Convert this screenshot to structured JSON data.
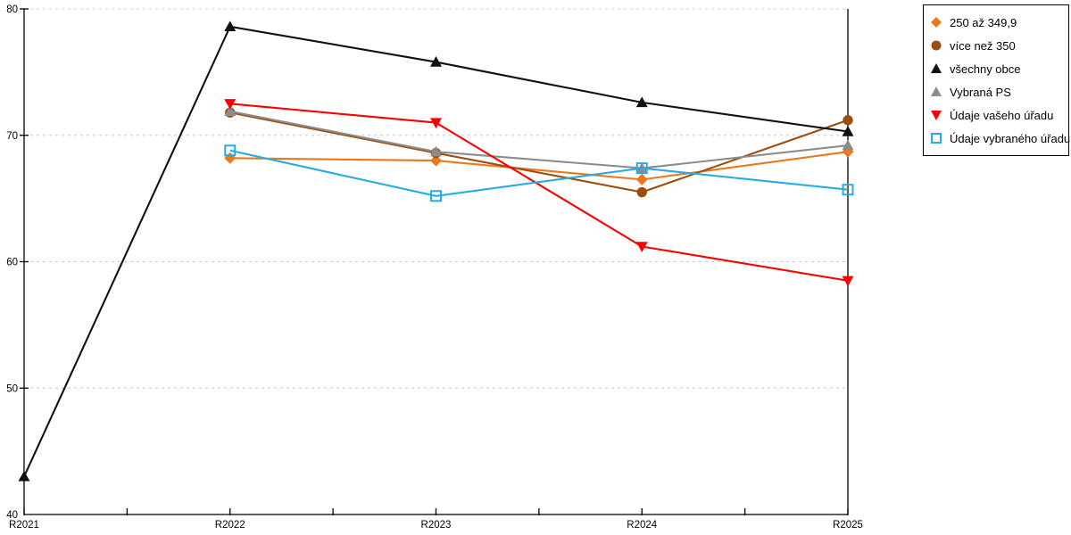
{
  "chart_data": {
    "type": "line",
    "categories": [
      "R2021",
      "R2022",
      "R2023",
      "R2024",
      "R2025"
    ],
    "ylim": [
      40,
      80
    ],
    "yticks": [
      40,
      50,
      60,
      70,
      80
    ],
    "grid": "horizontal dashed at 50,60,70,80",
    "legend_position": "outside-top-right boxed",
    "title": "",
    "xlabel": "",
    "ylabel": "",
    "series": [
      {
        "name": "250 až 349,9",
        "marker": "diamond",
        "color": "#E8791D",
        "values": [
          null,
          68.2,
          68.0,
          66.5,
          68.7
        ]
      },
      {
        "name": "více než 350",
        "marker": "circle",
        "color": "#9C4E0E",
        "values": [
          null,
          71.8,
          68.6,
          65.5,
          71.2
        ]
      },
      {
        "name": "všechny obce",
        "marker": "triangle-up",
        "color": "#111111",
        "values": [
          43.0,
          78.6,
          75.8,
          72.6,
          70.3
        ]
      },
      {
        "name": "Vybraná PS",
        "marker": "triangle-up",
        "color": "#8C8C8C",
        "values": [
          null,
          71.9,
          68.7,
          67.4,
          69.2
        ]
      },
      {
        "name": "Údaje vašeho úřadu",
        "marker": "triangle-down",
        "color": "#FB0000",
        "values": [
          null,
          72.5,
          71.0,
          61.2,
          58.5
        ]
      },
      {
        "name": "Údaje vybraného úřadu",
        "marker": "square-open",
        "color": "#29ABE2",
        "values": [
          null,
          68.8,
          65.2,
          67.4,
          65.7
        ]
      }
    ],
    "colors": {
      "grid": "#C8C8C8",
      "axis": "#000000",
      "background": "#FFFFFF",
      "legend_border": "#000000",
      "tick_label": "#000000"
    }
  }
}
